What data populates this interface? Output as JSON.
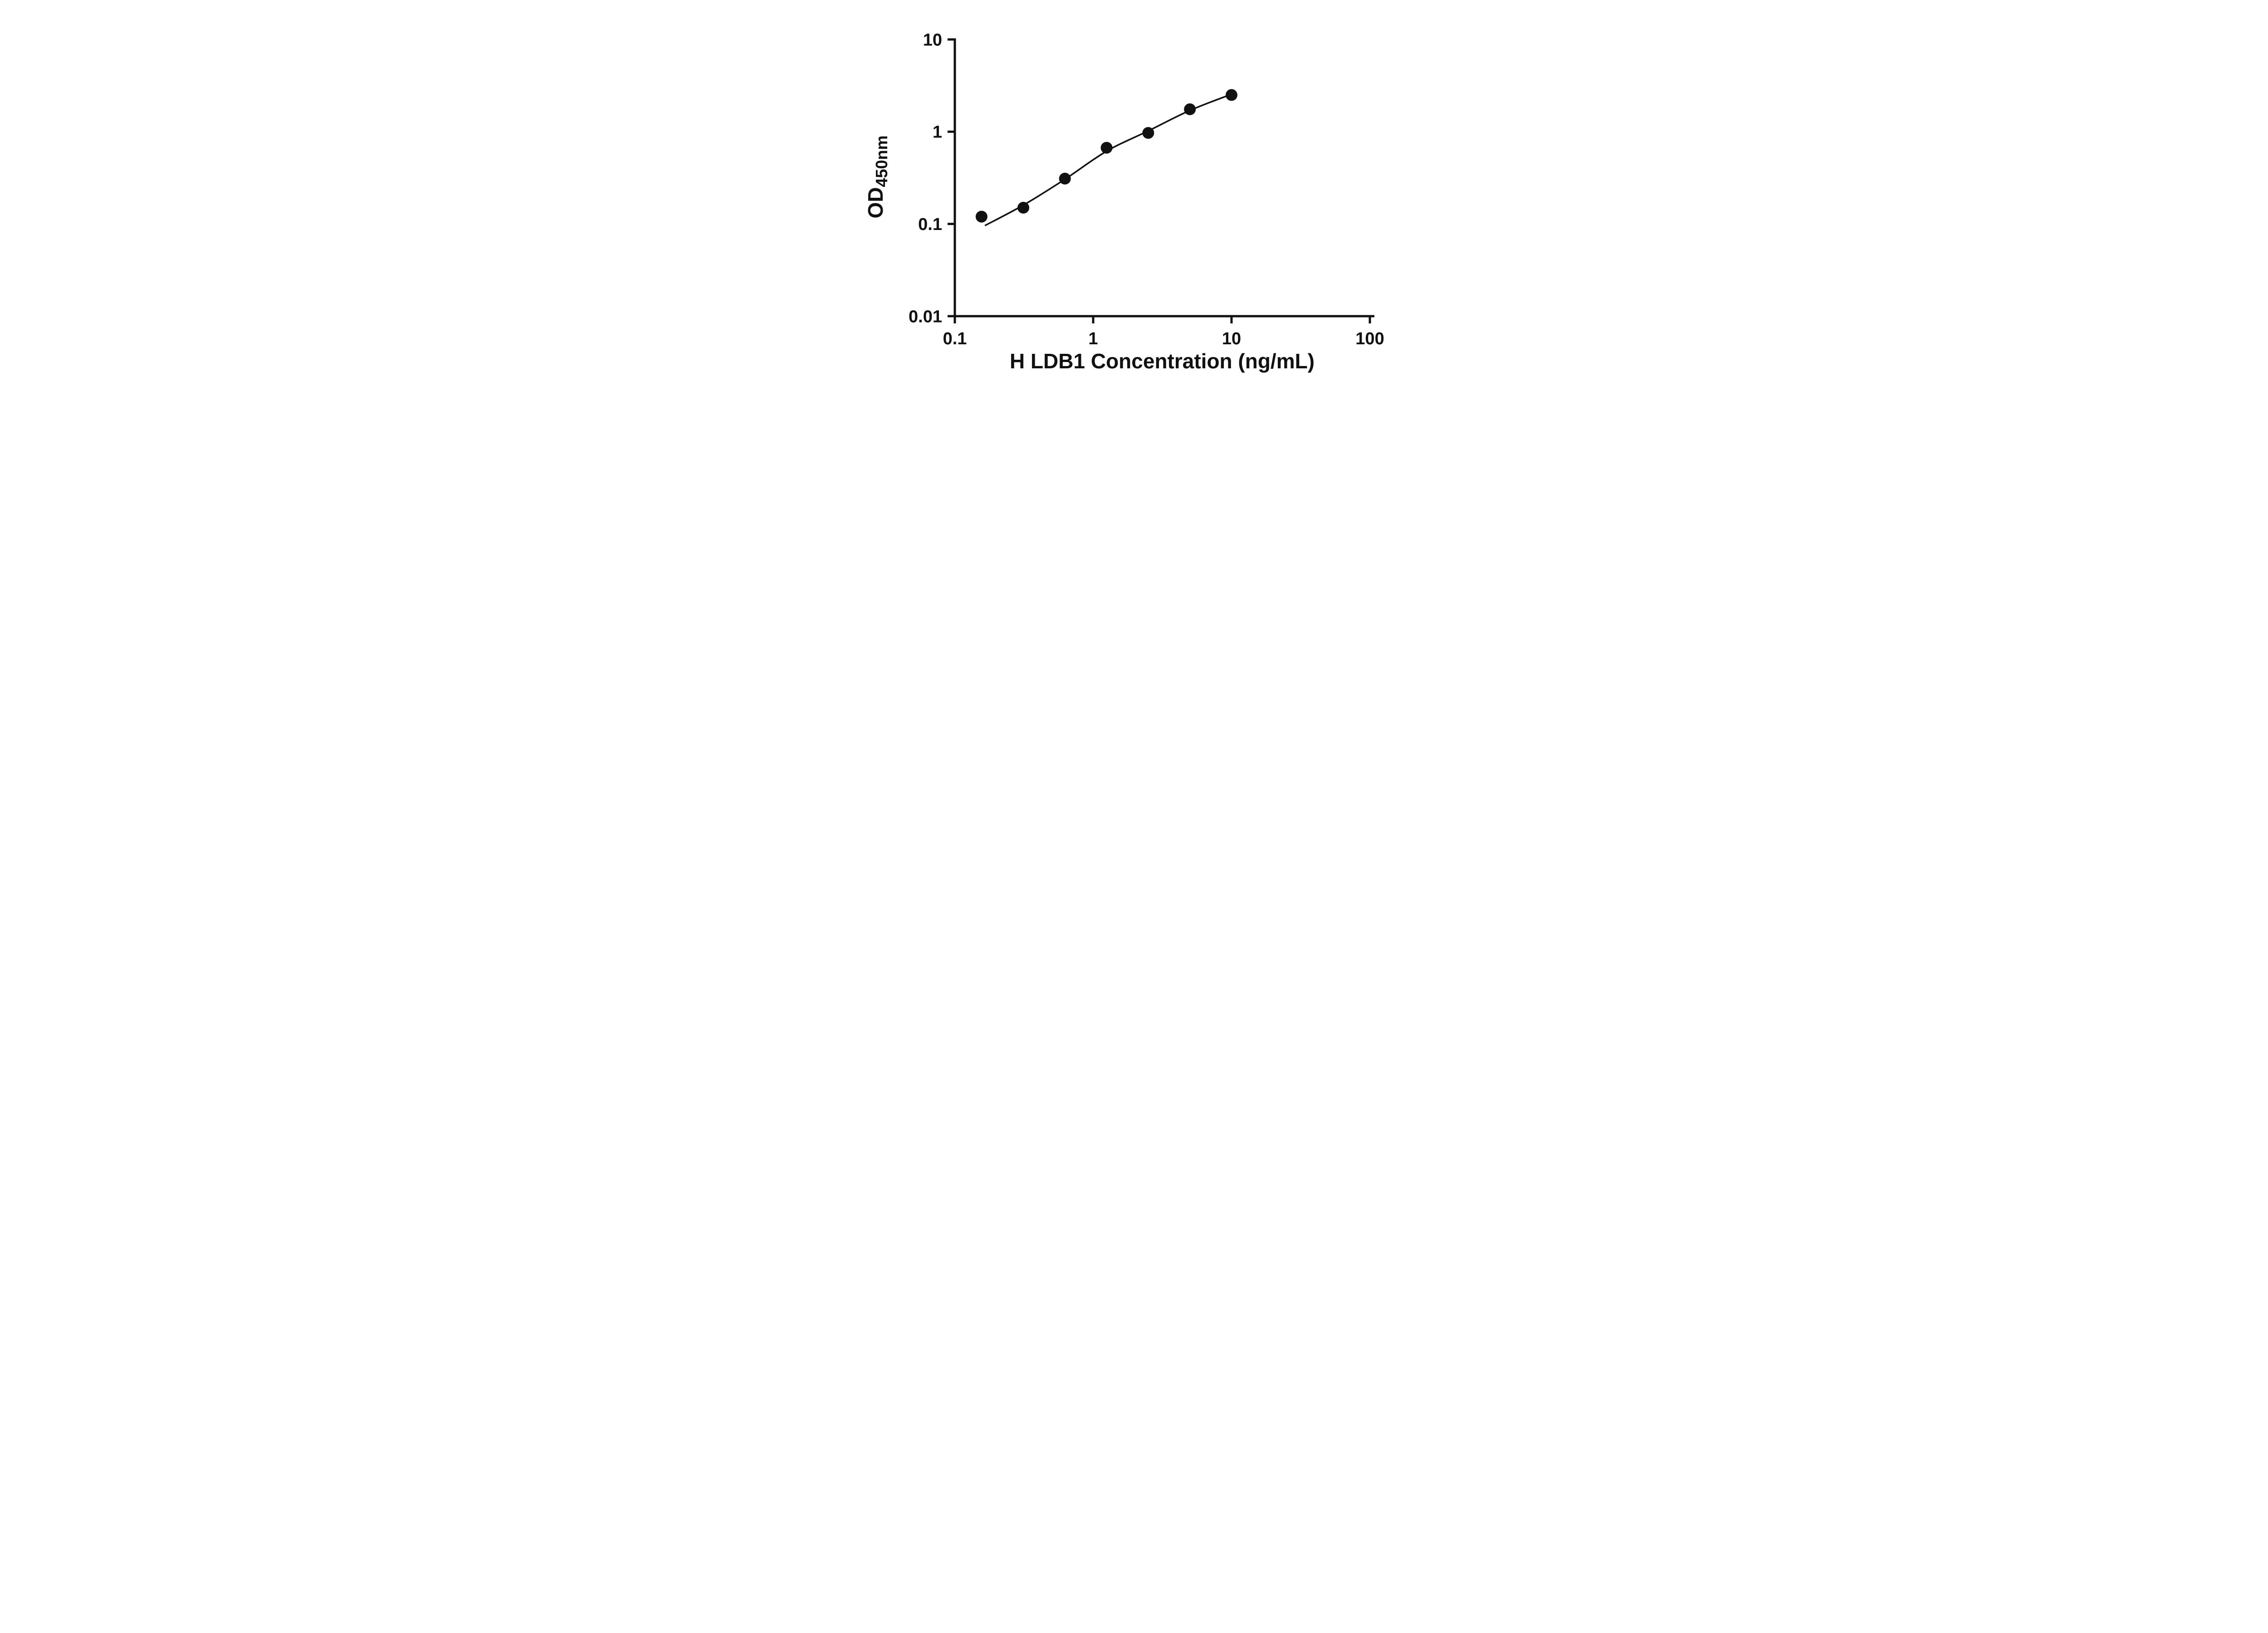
{
  "chart_data": {
    "type": "scatter",
    "title": "",
    "xlabel": "H LDB1 Concentration (ng/mL)",
    "ylabel_main": "OD",
    "ylabel_sub": "450nm",
    "x_scale": "log",
    "y_scale": "log",
    "xlim": [
      0.1,
      100
    ],
    "ylim": [
      0.01,
      10
    ],
    "grid": false,
    "legend": "none",
    "x_ticks": [
      {
        "value": 0.1,
        "label": "0.1"
      },
      {
        "value": 1,
        "label": "1"
      },
      {
        "value": 10,
        "label": "10"
      },
      {
        "value": 100,
        "label": "100"
      }
    ],
    "y_ticks": [
      {
        "value": 0.01,
        "label": "0.01"
      },
      {
        "value": 0.1,
        "label": "0.1"
      },
      {
        "value": 1,
        "label": "1"
      },
      {
        "value": 10,
        "label": "10"
      }
    ],
    "points": [
      {
        "x": 0.156,
        "y": 0.12
      },
      {
        "x": 0.313,
        "y": 0.15
      },
      {
        "x": 0.625,
        "y": 0.31
      },
      {
        "x": 1.25,
        "y": 0.67
      },
      {
        "x": 2.5,
        "y": 0.97
      },
      {
        "x": 5,
        "y": 1.75
      },
      {
        "x": 10,
        "y": 2.5
      }
    ],
    "fit_curve": [
      {
        "x": 0.165,
        "y": 0.096
      },
      {
        "x": 0.313,
        "y": 0.16
      },
      {
        "x": 0.625,
        "y": 0.305
      },
      {
        "x": 1.25,
        "y": 0.615
      },
      {
        "x": 2.5,
        "y": 1.02
      },
      {
        "x": 5,
        "y": 1.7
      },
      {
        "x": 10,
        "y": 2.55
      }
    ],
    "marker_color": "#111111",
    "line_color": "#111111",
    "axis_color": "#111111"
  }
}
